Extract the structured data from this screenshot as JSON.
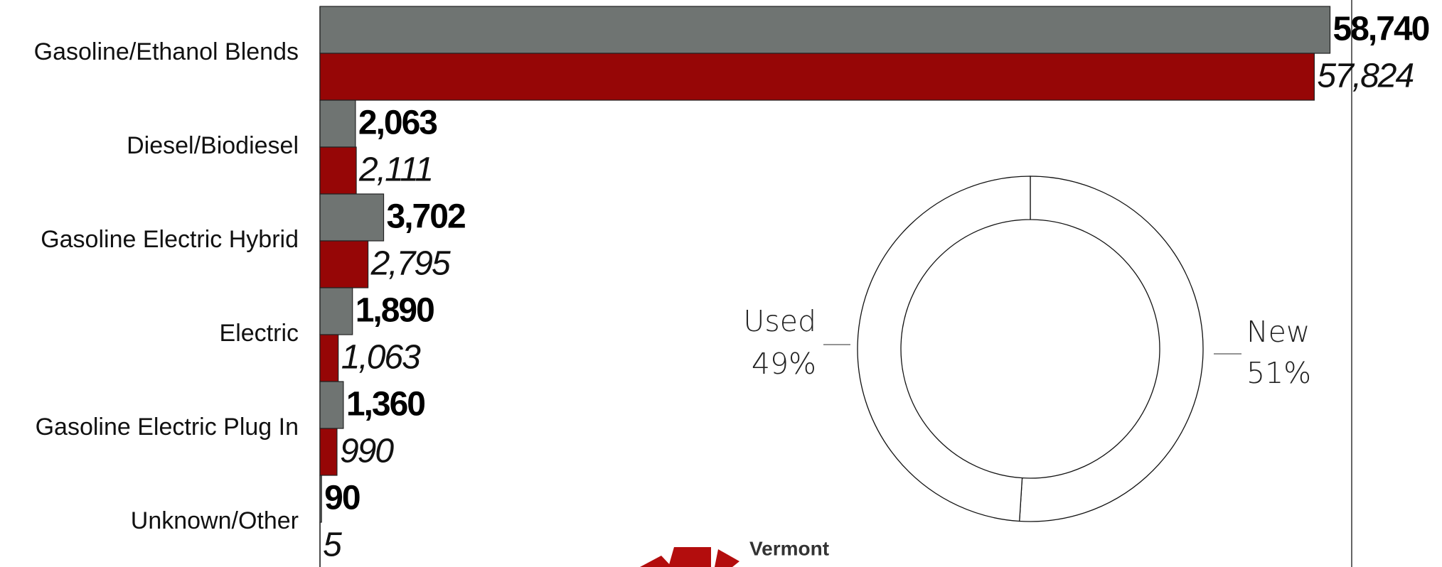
{
  "chart_data": [
    {
      "type": "hbar",
      "categories": [
        "Gasoline/Ethanol Blends",
        "Diesel/Biodiesel",
        "Gasoline Electric Hybrid",
        "Electric",
        "Gasoline Electric Plug In",
        "Unknown/Other"
      ],
      "series": [
        {
          "color": "#6f7472",
          "values": [
            58740,
            2063,
            3702,
            1890,
            1360,
            90
          ],
          "value_labels": [
            "58,740",
            "2,063",
            "3,702",
            "1,890",
            "1,360",
            "90"
          ]
        },
        {
          "color": "#960606",
          "values": [
            57824,
            2111,
            2795,
            1063,
            990,
            5
          ],
          "value_labels": [
            "57,824",
            "2,111",
            "2,795",
            "1,063",
            "990",
            "5"
          ]
        }
      ],
      "xlim": [
        0,
        60000
      ]
    },
    {
      "type": "donut",
      "categories": [
        "Used",
        "New"
      ],
      "values": [
        49,
        51
      ],
      "value_labels": [
        "49%",
        "51%"
      ],
      "color": "#ffffff"
    }
  ],
  "logo_text": "Vermont"
}
